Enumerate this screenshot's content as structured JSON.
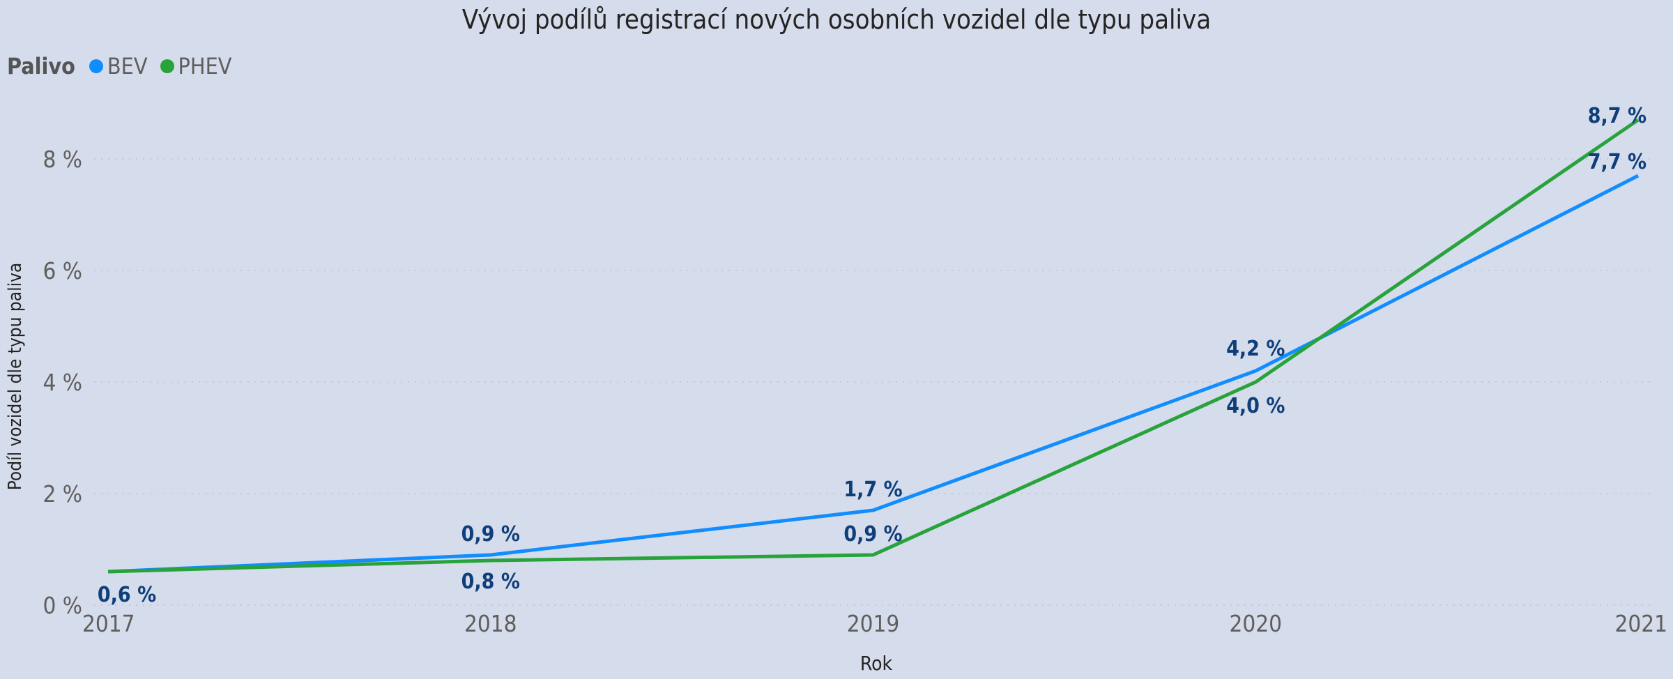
{
  "chart_data": {
    "type": "line",
    "title": "Vývoj podílů registrací nových osobních vozidel dle typu paliva",
    "xlabel": "Rok",
    "ylabel": "Podíl vozidel dle typu paliva",
    "legend_title": "Palivo",
    "legend_position": "top-left",
    "categories": [
      "2017",
      "2018",
      "2019",
      "2020",
      "2021"
    ],
    "y_ticks": [
      "0 %",
      "2 %",
      "4 %",
      "6 %",
      "8 %"
    ],
    "ylim": [
      0,
      8.8
    ],
    "grid": "horizontal dotted",
    "series": [
      {
        "name": "BEV",
        "color": "#118dff",
        "values": [
          0.6,
          0.9,
          1.7,
          4.2,
          7.7
        ],
        "labels": [
          "0,6 %",
          "0,9 %",
          "1,7 %",
          "4,2 %",
          "7,7 %"
        ]
      },
      {
        "name": "PHEV",
        "color": "#28a33b",
        "values": [
          0.6,
          0.8,
          0.9,
          4.0,
          8.7
        ],
        "labels": [
          "",
          "0,8 %",
          "0,9 %",
          "4,0 %",
          "8,7 %"
        ]
      }
    ]
  }
}
